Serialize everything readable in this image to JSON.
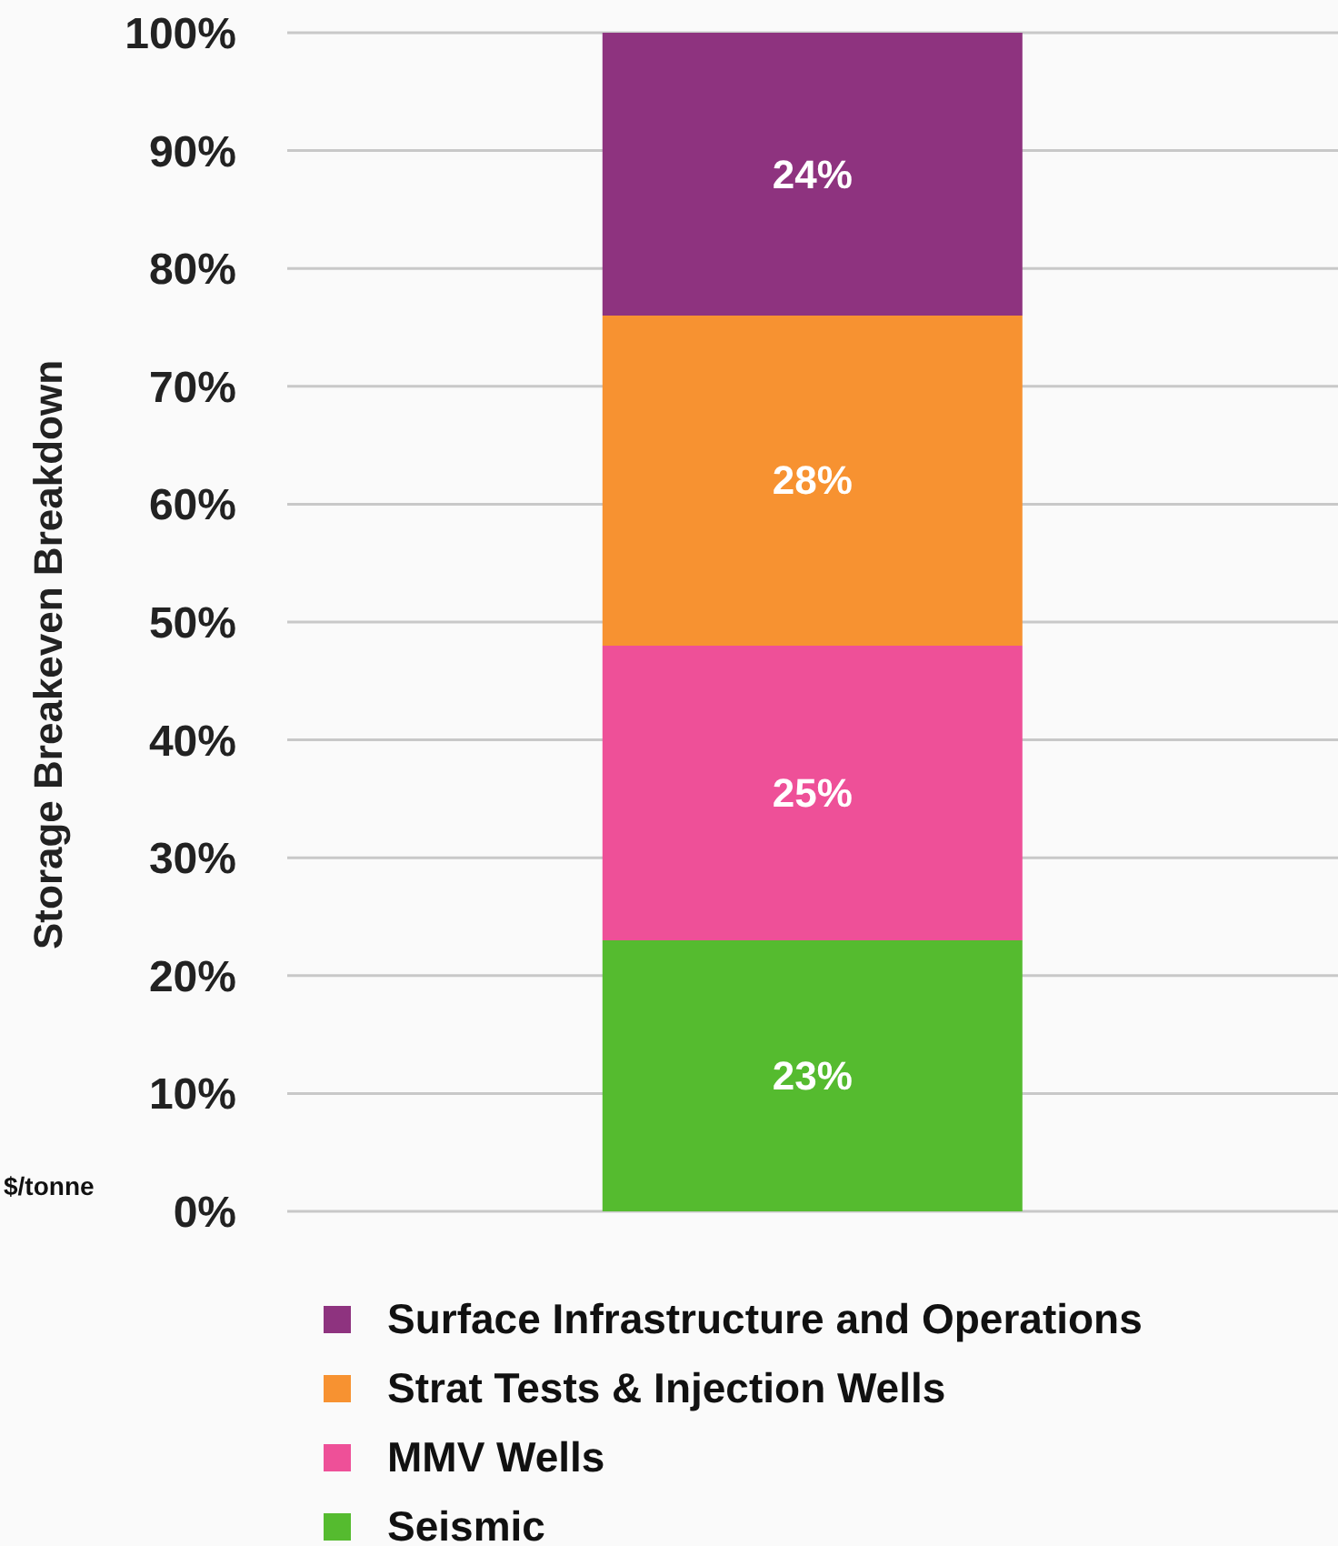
{
  "chart_data": {
    "type": "bar",
    "stacked": true,
    "ylabel": "Storage Breakeven Breakdown",
    "categories": [
      null
    ],
    "series": [
      {
        "name": "Seismic",
        "color": "#55bb2f",
        "values": [
          23
        ]
      },
      {
        "name": "MMV Wells",
        "color": "#ee5098",
        "values": [
          25
        ]
      },
      {
        "name": "Strat Tests & Injection Wells",
        "color": "#f79231",
        "values": [
          28
        ]
      },
      {
        "name": "Surface Infrastructure and Operations",
        "color": "#8e337f",
        "values": [
          24
        ]
      }
    ],
    "value_labels": [
      [
        "23%"
      ],
      [
        "25%"
      ],
      [
        "28%"
      ],
      [
        "24%"
      ]
    ],
    "ylim": [
      0,
      100
    ],
    "yticks": [
      {
        "value": 0,
        "label": "0%"
      },
      {
        "value": 10,
        "label": "10%"
      },
      {
        "value": 20,
        "label": "20%"
      },
      {
        "value": 30,
        "label": "30%"
      },
      {
        "value": 40,
        "label": "40%"
      },
      {
        "value": 50,
        "label": "50%"
      },
      {
        "value": 60,
        "label": "60%"
      },
      {
        "value": 70,
        "label": "70%"
      },
      {
        "value": 80,
        "label": "80%"
      },
      {
        "value": 90,
        "label": "90%"
      },
      {
        "value": 100,
        "label": "100%"
      }
    ],
    "grid": "y",
    "legend": "bottom",
    "annotations": [
      "$/tonne"
    ]
  }
}
